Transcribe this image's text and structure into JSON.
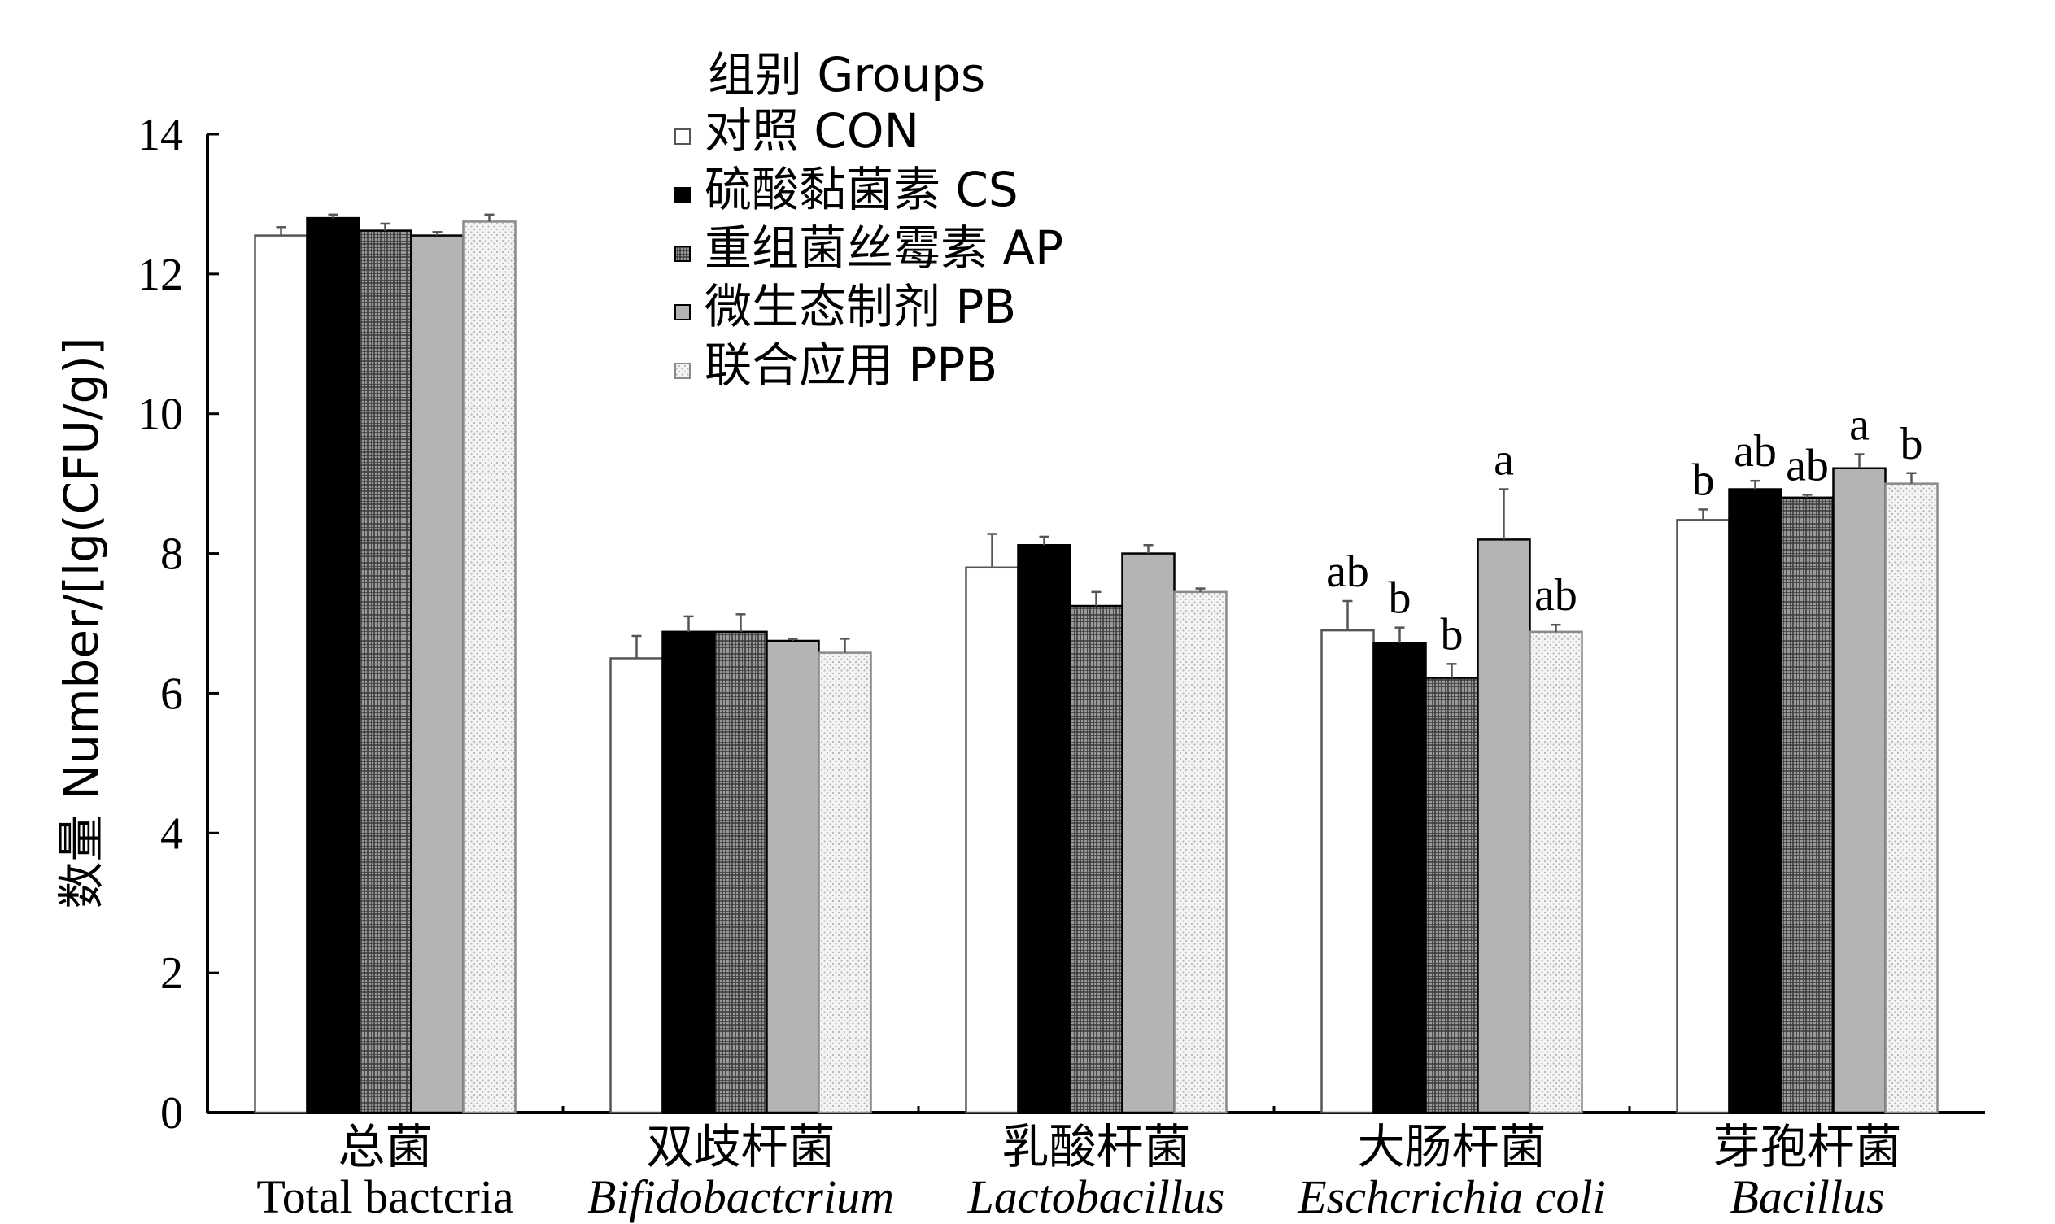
{
  "chart_data": {
    "type": "bar",
    "ylabel": "数量 Number/[lg(CFU/g)]",
    "ylim": [
      0,
      14
    ],
    "yticks": [
      "0",
      "2",
      "4",
      "6",
      "8",
      "10",
      "12",
      "14"
    ],
    "legend_title": "组别 Groups",
    "legend_placement": "top-center",
    "categories": [
      {
        "cn": "总菌",
        "en": "Total bactcria",
        "italic": false
      },
      {
        "cn": "双歧杆菌",
        "en": "Bifidobactcrium",
        "italic": true
      },
      {
        "cn": "乳酸杆菌",
        "en": "Lactobacillus",
        "italic": true
      },
      {
        "cn": "大肠杆菌",
        "en": "Eschcrichia coli",
        "italic": true
      },
      {
        "cn": "芽孢杆菌",
        "en": "Bacillus",
        "italic": true
      }
    ],
    "series": [
      {
        "name": "对照 CON",
        "pattern": "white",
        "values": [
          12.55,
          6.5,
          7.8,
          6.9,
          8.48
        ],
        "errors": [
          0.12,
          0.32,
          0.48,
          0.42,
          0.15
        ],
        "labels": [
          "",
          "",
          "",
          "ab",
          "b"
        ]
      },
      {
        "name": "硫酸黏菌素 CS",
        "pattern": "black",
        "values": [
          12.8,
          6.88,
          8.12,
          6.72,
          8.92
        ],
        "errors": [
          0.05,
          0.22,
          0.12,
          0.22,
          0.12
        ],
        "labels": [
          "",
          "",
          "",
          "b",
          "ab"
        ]
      },
      {
        "name": "重组菌丝霉素 AP",
        "pattern": "grid",
        "values": [
          12.62,
          6.88,
          7.25,
          6.22,
          8.8
        ],
        "errors": [
          0.1,
          0.25,
          0.2,
          0.2,
          0.04
        ],
        "labels": [
          "",
          "",
          "",
          "b",
          "ab"
        ]
      },
      {
        "name": "微生态制剂 PB",
        "pattern": "gray",
        "values": [
          12.55,
          6.75,
          8.0,
          8.2,
          9.22
        ],
        "errors": [
          0.05,
          0.03,
          0.12,
          0.72,
          0.2
        ],
        "labels": [
          "",
          "",
          "",
          "a",
          "a"
        ]
      },
      {
        "name": "联合应用 PPB",
        "pattern": "dots",
        "values": [
          12.75,
          6.58,
          7.45,
          6.88,
          9.0
        ],
        "errors": [
          0.1,
          0.2,
          0.05,
          0.1,
          0.15
        ],
        "labels": [
          "",
          "",
          "",
          "ab",
          "b"
        ]
      }
    ]
  }
}
